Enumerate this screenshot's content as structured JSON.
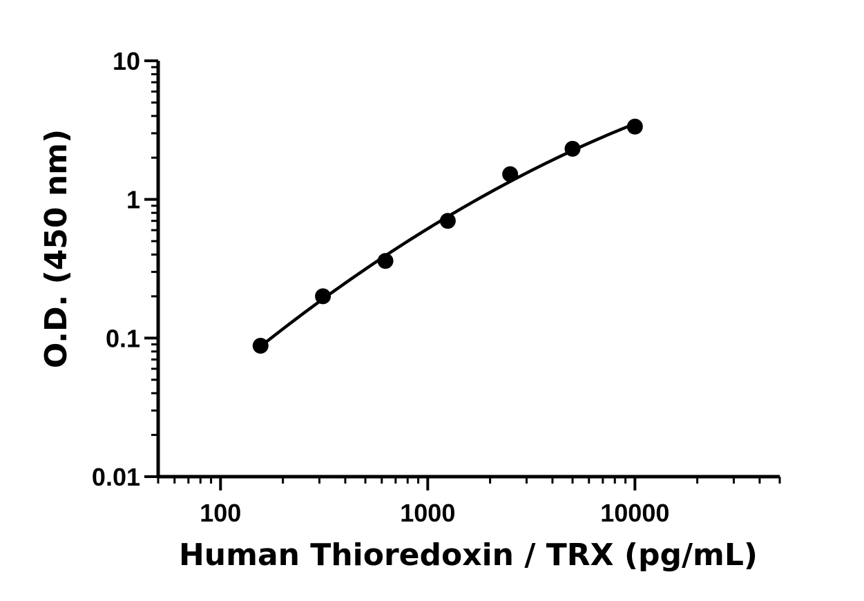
{
  "chart_data": {
    "type": "scatter",
    "title": "",
    "xlabel": "Human Thioredoxin / TRX (pg/mL)",
    "ylabel": "O.D. (450 nm)",
    "x_scale": "log",
    "y_scale": "log",
    "xlim": [
      50,
      50000
    ],
    "ylim": [
      0.01,
      10
    ],
    "x_ticks": [
      {
        "value": 100,
        "label": "100"
      },
      {
        "value": 1000,
        "label": "1000"
      },
      {
        "value": 10000,
        "label": "10000"
      }
    ],
    "y_ticks": [
      {
        "value": 0.01,
        "label": "0.01"
      },
      {
        "value": 0.1,
        "label": "0.1"
      },
      {
        "value": 1,
        "label": "1"
      },
      {
        "value": 10,
        "label": "10"
      }
    ],
    "grid": false,
    "legend": "none",
    "series": [
      {
        "x": [
          156,
          312,
          625,
          1250,
          2500,
          5000,
          10000
        ],
        "y": [
          0.088,
          0.2,
          0.36,
          0.7,
          1.52,
          2.32,
          3.35
        ],
        "marker": "circle",
        "color": "#000000",
        "fit_curve": true
      }
    ]
  }
}
